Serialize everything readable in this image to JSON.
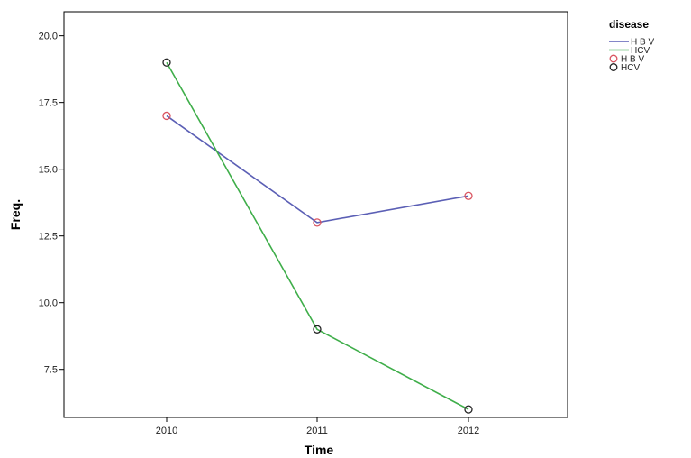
{
  "chart_data": {
    "type": "line",
    "xlabel": "Time",
    "ylabel": "Freq.",
    "categories": [
      "2010",
      "2011",
      "2012"
    ],
    "y_ticks": [
      "7.5",
      "10.0",
      "12.5",
      "15.0",
      "17.5",
      "20.0"
    ],
    "y_tick_values": [
      7.5,
      10.0,
      12.5,
      15.0,
      17.5,
      20.0
    ],
    "ylim": [
      5.7,
      20.9
    ],
    "grid": false,
    "legend_position": "top-right, outside plot",
    "legend_title": "disease",
    "series": [
      {
        "name": "H B V",
        "values": [
          17,
          13,
          14
        ],
        "line_color": "#5b5fb5",
        "marker": "circle",
        "marker_color": "#d9535f"
      },
      {
        "name": "HCV",
        "values": [
          19,
          9,
          6
        ],
        "line_color": "#3fae4a",
        "marker": "circle",
        "marker_color": "#222222"
      }
    ],
    "legend_entries": [
      {
        "label": "H B V",
        "symbol": "line",
        "color": "#5b5fb5"
      },
      {
        "label": "HCV",
        "symbol": "line",
        "color": "#3fae4a"
      },
      {
        "label": "H B V",
        "symbol": "circle",
        "color": "#d9535f"
      },
      {
        "label": "HCV",
        "symbol": "circle",
        "color": "#222222"
      }
    ]
  }
}
